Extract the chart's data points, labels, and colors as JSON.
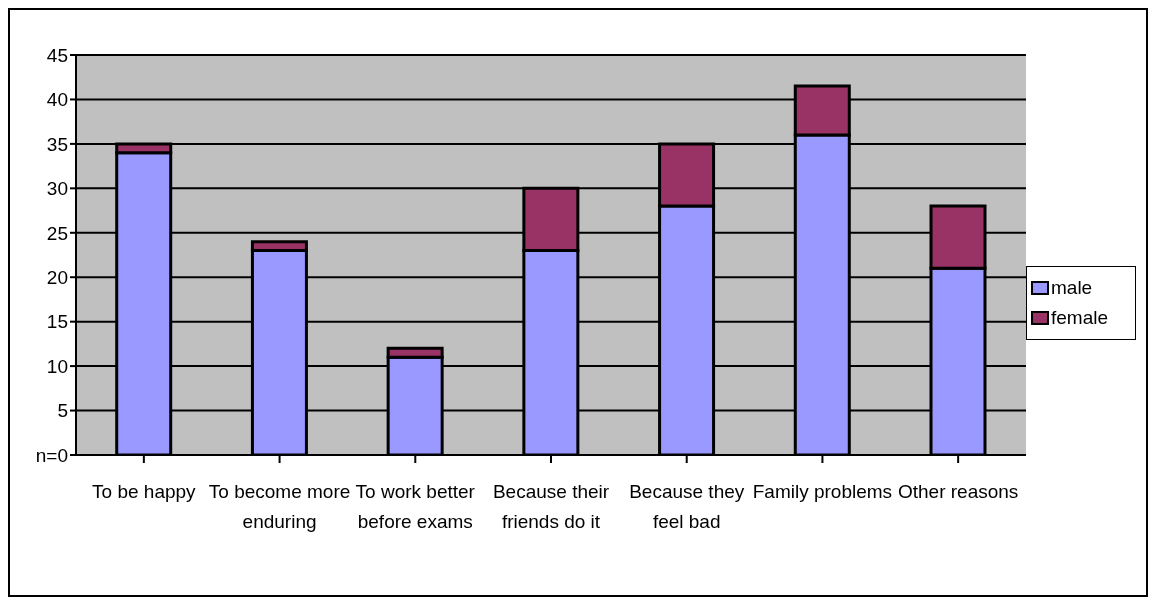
{
  "chart_data": {
    "type": "bar",
    "stacked": true,
    "categories": [
      "To be happy",
      "To become more enduring",
      "To work better before exams",
      "Because their friends do it",
      "Because they feel bad",
      "Family problems",
      "Other reasons"
    ],
    "series": [
      {
        "name": "male",
        "color": "#9999ff",
        "values": [
          34,
          23,
          11,
          23,
          28,
          36,
          21
        ]
      },
      {
        "name": "female",
        "color": "#993366",
        "values": [
          1,
          1,
          1,
          7,
          7,
          5.5,
          7
        ]
      }
    ],
    "ylim": [
      0,
      45
    ],
    "yticks": [
      {
        "value": 0,
        "label": "n=0"
      },
      5,
      10,
      15,
      20,
      25,
      30,
      35,
      40,
      45
    ],
    "grid": "y",
    "legend": "right"
  }
}
